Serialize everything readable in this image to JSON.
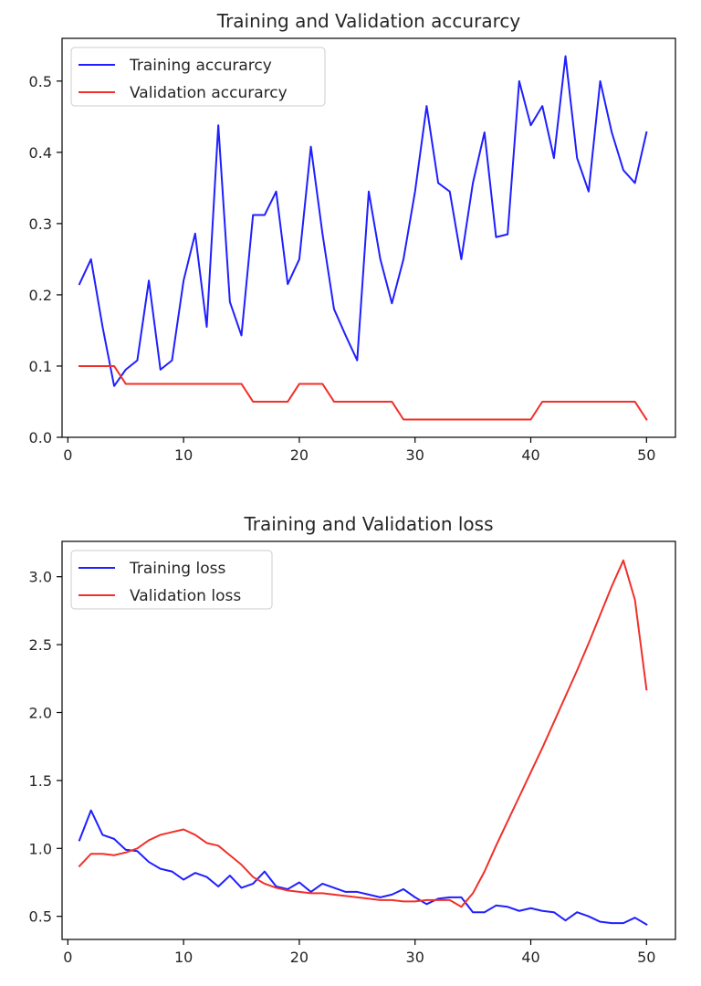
{
  "chart_data": [
    {
      "type": "line",
      "title": "Training and Validation accurarcy",
      "xlabel": "",
      "ylabel": "",
      "xlim": [
        -0.5,
        52.5
      ],
      "ylim": [
        0.0,
        0.56
      ],
      "xticks": [
        0,
        10,
        20,
        30,
        40,
        50
      ],
      "yticks": [
        0.0,
        0.1,
        0.2,
        0.3,
        0.4,
        0.5
      ],
      "ytick_labels": [
        "0.0",
        "0.1",
        "0.2",
        "0.3",
        "0.4",
        "0.5"
      ],
      "grid": false,
      "legend_position": "upper-left",
      "x": [
        1,
        2,
        3,
        4,
        5,
        6,
        7,
        8,
        9,
        10,
        11,
        12,
        13,
        14,
        15,
        16,
        17,
        18,
        19,
        20,
        21,
        22,
        23,
        24,
        25,
        26,
        27,
        28,
        29,
        30,
        31,
        32,
        33,
        34,
        35,
        36,
        37,
        38,
        39,
        40,
        41,
        42,
        43,
        44,
        45,
        46,
        47,
        48,
        49,
        50
      ],
      "series": [
        {
          "name": "Training accurarcy",
          "color": "#1f1fff",
          "values": [
            0.215,
            0.25,
            0.155,
            0.072,
            0.095,
            0.108,
            0.22,
            0.095,
            0.108,
            0.22,
            0.286,
            0.155,
            0.438,
            0.19,
            0.143,
            0.312,
            0.312,
            0.345,
            0.215,
            0.25,
            0.408,
            0.286,
            0.18,
            0.143,
            0.108,
            0.345,
            0.25,
            0.188,
            0.25,
            0.345,
            0.465,
            0.357,
            0.345,
            0.25,
            0.357,
            0.428,
            0.281,
            0.285,
            0.5,
            0.438,
            0.465,
            0.392,
            0.535,
            0.392,
            0.345,
            0.5,
            0.428,
            0.375,
            0.357,
            0.428
          ]
        },
        {
          "name": "Validation accurarcy",
          "color": "#f0302a",
          "values": [
            0.1,
            0.1,
            0.1,
            0.1,
            0.075,
            0.075,
            0.075,
            0.075,
            0.075,
            0.075,
            0.075,
            0.075,
            0.075,
            0.075,
            0.075,
            0.05,
            0.05,
            0.05,
            0.05,
            0.075,
            0.075,
            0.075,
            0.05,
            0.05,
            0.05,
            0.05,
            0.05,
            0.05,
            0.025,
            0.025,
            0.025,
            0.025,
            0.025,
            0.025,
            0.025,
            0.025,
            0.025,
            0.025,
            0.025,
            0.025,
            0.05,
            0.05,
            0.05,
            0.05,
            0.05,
            0.05,
            0.05,
            0.05,
            0.05,
            0.025
          ]
        }
      ]
    },
    {
      "type": "line",
      "title": "Training and Validation loss",
      "xlabel": "",
      "ylabel": "",
      "xlim": [
        -0.5,
        52.5
      ],
      "ylim": [
        0.33,
        3.26
      ],
      "xticks": [
        0,
        10,
        20,
        30,
        40,
        50
      ],
      "yticks": [
        0.5,
        1.0,
        1.5,
        2.0,
        2.5,
        3.0
      ],
      "ytick_labels": [
        "0.5",
        "1.0",
        "1.5",
        "2.0",
        "2.5",
        "3.0"
      ],
      "grid": false,
      "legend_position": "upper-left",
      "x": [
        1,
        2,
        3,
        4,
        5,
        6,
        7,
        8,
        9,
        10,
        11,
        12,
        13,
        14,
        15,
        16,
        17,
        18,
        19,
        20,
        21,
        22,
        23,
        24,
        25,
        26,
        27,
        28,
        29,
        30,
        31,
        32,
        33,
        34,
        35,
        36,
        37,
        38,
        39,
        40,
        41,
        42,
        43,
        44,
        45,
        46,
        47,
        48,
        49,
        50
      ],
      "series": [
        {
          "name": "Training loss",
          "color": "#1f1fff",
          "values": [
            1.06,
            1.28,
            1.1,
            1.07,
            0.99,
            0.98,
            0.9,
            0.85,
            0.83,
            0.77,
            0.82,
            0.79,
            0.72,
            0.8,
            0.71,
            0.74,
            0.83,
            0.72,
            0.7,
            0.75,
            0.68,
            0.74,
            0.71,
            0.68,
            0.68,
            0.66,
            0.64,
            0.66,
            0.7,
            0.64,
            0.59,
            0.63,
            0.64,
            0.64,
            0.53,
            0.53,
            0.58,
            0.57,
            0.54,
            0.56,
            0.54,
            0.53,
            0.47,
            0.53,
            0.5,
            0.46,
            0.45,
            0.45,
            0.49,
            0.44
          ]
        },
        {
          "name": "Validation loss",
          "color": "#f0302a",
          "values": [
            0.87,
            0.96,
            0.96,
            0.95,
            0.97,
            1.0,
            1.06,
            1.1,
            1.12,
            1.14,
            1.1,
            1.04,
            1.02,
            0.95,
            0.88,
            0.79,
            0.74,
            0.71,
            0.69,
            0.68,
            0.67,
            0.67,
            0.66,
            0.65,
            0.64,
            0.63,
            0.62,
            0.62,
            0.61,
            0.61,
            0.62,
            0.62,
            0.62,
            0.57,
            0.67,
            0.83,
            1.02,
            1.2,
            1.38,
            1.56,
            1.74,
            1.93,
            2.12,
            2.31,
            2.51,
            2.72,
            2.93,
            3.12,
            2.83,
            2.17
          ]
        }
      ]
    }
  ]
}
